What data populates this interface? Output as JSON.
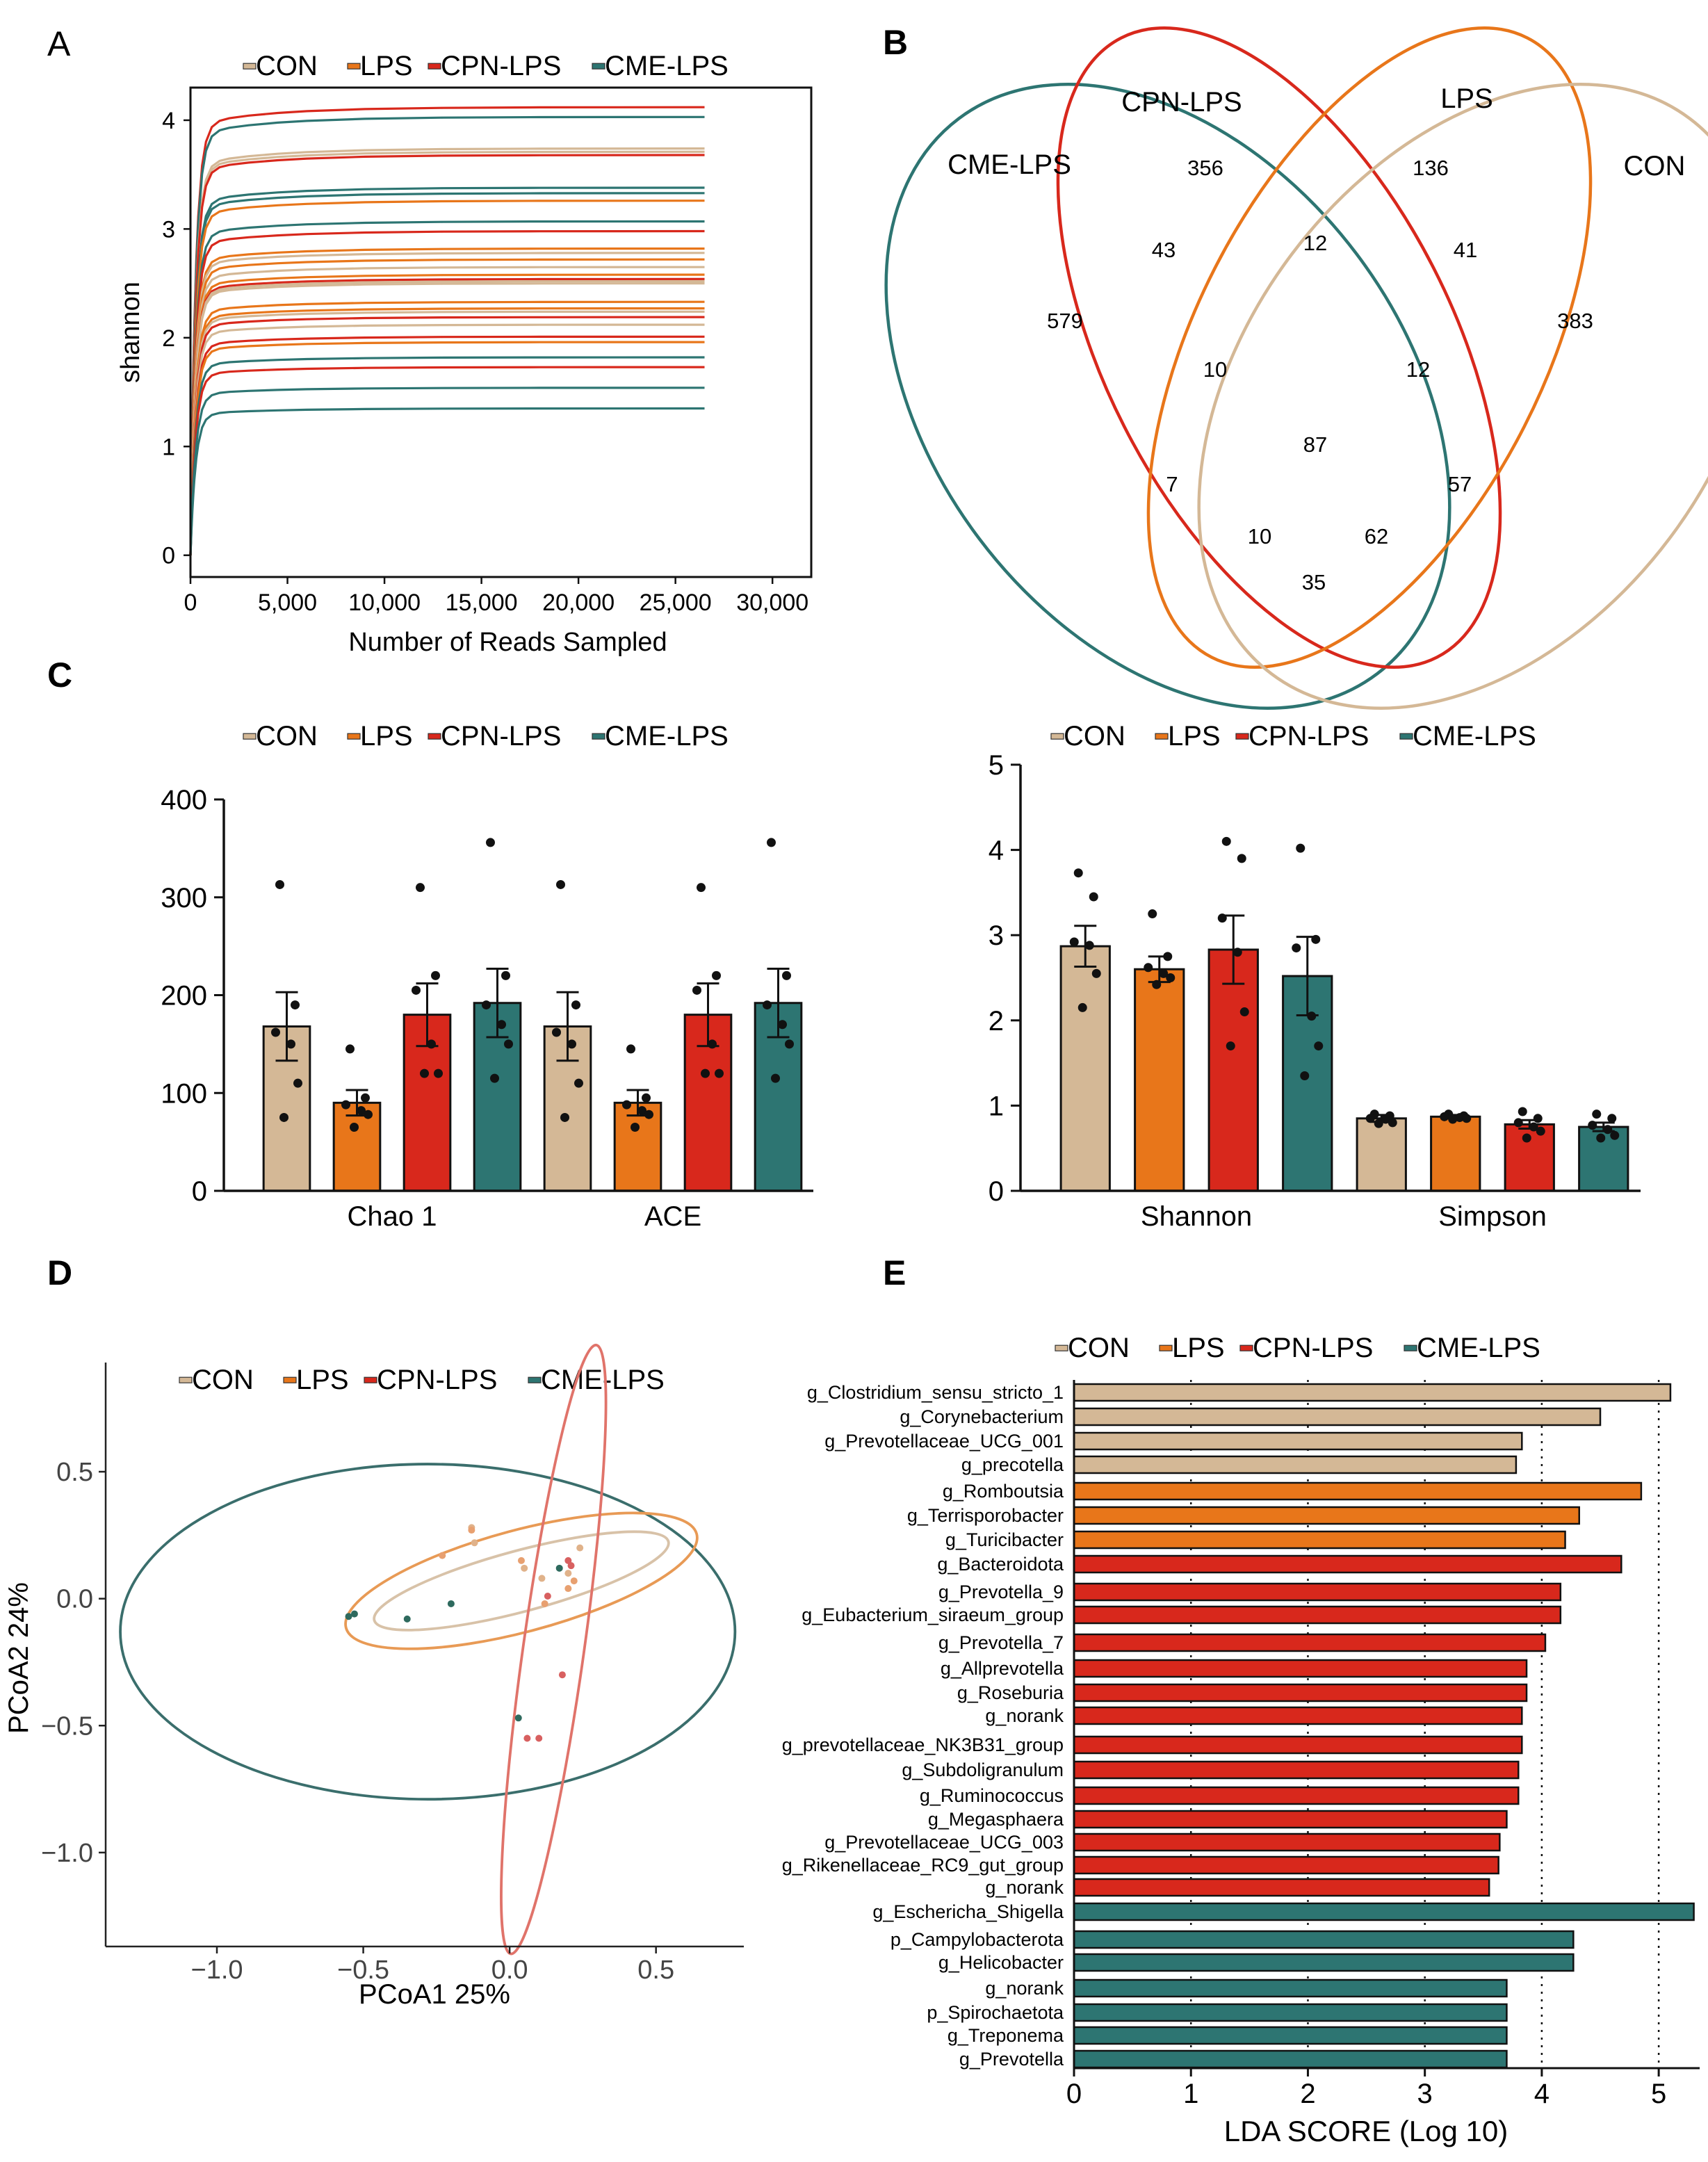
{
  "colors": {
    "CON": "#d4b896",
    "LPS": "#e8761a",
    "CPN-LPS": "#d8281c",
    "CME-LPS": "#2d7572",
    "ellipse_CON": "#d8c2a8",
    "ellipse_LPS": "#e89a55",
    "ellipse_CPN": "#e0736a",
    "ellipse_CME": "#3a6e6c"
  },
  "panels": {
    "A": "A",
    "B": "B",
    "C": "C",
    "D": "D",
    "E": "E"
  },
  "legend": [
    "CON",
    "LPS",
    "CPN-LPS",
    "CME-LPS"
  ],
  "panelA": {
    "chart_data": {
      "type": "line",
      "title": "",
      "xlabel": "Number of Reads Sampled",
      "ylabel": "shannon",
      "xlim": [
        0,
        32000
      ],
      "ylim": [
        -0.2,
        4.3
      ],
      "xticks": [
        0,
        5000,
        10000,
        15000,
        20000,
        25000,
        30000
      ],
      "xtick_labels": [
        "0",
        "5,000",
        "10,000",
        "15,000",
        "20,000",
        "25,000",
        "30,000"
      ],
      "yticks": [
        0,
        1,
        2,
        3,
        4
      ],
      "ytick_labels": [
        "0",
        "1",
        "2",
        "3",
        "4"
      ],
      "x_max_sampled": 26500,
      "series": [
        {
          "name": "CPN-LPS",
          "plateau": 4.12
        },
        {
          "name": "CME-LPS",
          "plateau": 4.03
        },
        {
          "name": "CON",
          "plateau": 3.74
        },
        {
          "name": "CON",
          "plateau": 3.71
        },
        {
          "name": "CPN-LPS",
          "plateau": 3.68
        },
        {
          "name": "CME-LPS",
          "plateau": 3.38
        },
        {
          "name": "CME-LPS",
          "plateau": 3.33
        },
        {
          "name": "LPS",
          "plateau": 3.26
        },
        {
          "name": "CME-LPS",
          "plateau": 3.07
        },
        {
          "name": "CPN-LPS",
          "plateau": 2.98
        },
        {
          "name": "LPS",
          "plateau": 2.82
        },
        {
          "name": "CON",
          "plateau": 2.78
        },
        {
          "name": "LPS",
          "plateau": 2.72
        },
        {
          "name": "CON",
          "plateau": 2.65
        },
        {
          "name": "LPS",
          "plateau": 2.58
        },
        {
          "name": "CPN-LPS",
          "plateau": 2.54
        },
        {
          "name": "CON",
          "plateau": 2.52
        },
        {
          "name": "CON",
          "plateau": 2.5
        },
        {
          "name": "LPS",
          "plateau": 2.33
        },
        {
          "name": "LPS",
          "plateau": 2.27
        },
        {
          "name": "CON",
          "plateau": 2.24
        },
        {
          "name": "CPN-LPS",
          "plateau": 2.19
        },
        {
          "name": "CON",
          "plateau": 2.12
        },
        {
          "name": "CPN-LPS",
          "plateau": 2.01
        },
        {
          "name": "LPS",
          "plateau": 1.96
        },
        {
          "name": "CME-LPS",
          "plateau": 1.82
        },
        {
          "name": "CPN-LPS",
          "plateau": 1.73
        },
        {
          "name": "CME-LPS",
          "plateau": 1.54
        },
        {
          "name": "CME-LPS",
          "plateau": 1.35
        }
      ]
    }
  },
  "panelB": {
    "chart_data": {
      "type": "venn",
      "sets": [
        "CME-LPS",
        "CPN-LPS",
        "LPS",
        "CON"
      ],
      "regions": [
        {
          "sets": [
            "CPN-LPS"
          ],
          "value": "356"
        },
        {
          "sets": [
            "LPS"
          ],
          "value": "136"
        },
        {
          "sets": [
            "CME-LPS",
            "CPN-LPS"
          ],
          "value": "43"
        },
        {
          "sets": [
            "CPN-LPS",
            "LPS"
          ],
          "value": "12"
        },
        {
          "sets": [
            "LPS",
            "CON"
          ],
          "value": "41"
        },
        {
          "sets": [
            "CME-LPS"
          ],
          "value": "579"
        },
        {
          "sets": [
            "CON"
          ],
          "value": "383"
        },
        {
          "sets": [
            "CME-LPS",
            "CPN-LPS",
            "LPS"
          ],
          "value": "10"
        },
        {
          "sets": [
            "CPN-LPS",
            "LPS",
            "CON"
          ],
          "value": "12"
        },
        {
          "sets": [
            "CME-LPS",
            "CPN-LPS",
            "LPS",
            "CON"
          ],
          "value": "87"
        },
        {
          "sets": [
            "CME-LPS",
            "LPS"
          ],
          "value": "7"
        },
        {
          "sets": [
            "CPN-LPS",
            "CON"
          ],
          "value": "57"
        },
        {
          "sets": [
            "CME-LPS",
            "LPS",
            "CON"
          ],
          "value": "10"
        },
        {
          "sets": [
            "CME-LPS",
            "CPN-LPS",
            "CON"
          ],
          "value": "62"
        },
        {
          "sets": [
            "CME-LPS",
            "CON"
          ],
          "value": "35"
        }
      ]
    }
  },
  "panelC1": {
    "chart_data": {
      "type": "bar",
      "categories": [
        "Chao 1",
        "ACE"
      ],
      "ylim": [
        0,
        400
      ],
      "yticks": [
        "0",
        "100",
        "200",
        "300",
        "400"
      ],
      "series": [
        {
          "name": "CON",
          "values": [
            168,
            168
          ],
          "se": [
            35,
            35
          ],
          "points": [
            [
              313,
              190,
              162,
              150,
              110,
              75
            ],
            [
              313,
              190,
              162,
              150,
              110,
              75
            ]
          ]
        },
        {
          "name": "LPS",
          "values": [
            90,
            90
          ],
          "se": [
            13,
            13
          ],
          "points": [
            [
              145,
              95,
              88,
              82,
              78,
              65
            ],
            [
              145,
              95,
              88,
              82,
              78,
              65
            ]
          ]
        },
        {
          "name": "CPN-LPS",
          "values": [
            180,
            180
          ],
          "se": [
            32,
            32
          ],
          "points": [
            [
              310,
              220,
              205,
              150,
              120,
              120
            ],
            [
              310,
              220,
              205,
              150,
              120,
              120
            ]
          ]
        },
        {
          "name": "CME-LPS",
          "values": [
            192,
            192
          ],
          "se": [
            35,
            35
          ],
          "points": [
            [
              356,
              220,
              190,
              170,
              150,
              115
            ],
            [
              356,
              220,
              190,
              170,
              150,
              115
            ]
          ]
        }
      ]
    }
  },
  "panelC2": {
    "chart_data": {
      "type": "bar",
      "categories": [
        "Shannon",
        "Simpson"
      ],
      "ylim": [
        0,
        5
      ],
      "yticks": [
        "0",
        "1",
        "2",
        "3",
        "4",
        "5"
      ],
      "series": [
        {
          "name": "CON",
          "values": [
            2.87,
            0.85
          ],
          "se": [
            0.24,
            0.04
          ],
          "points": [
            [
              3.73,
              3.45,
              2.92,
              2.88,
              2.55,
              2.15
            ],
            [
              0.9,
              0.88,
              0.85,
              0.84,
              0.8,
              0.79
            ]
          ]
        },
        {
          "name": "LPS",
          "values": [
            2.6,
            0.87
          ],
          "se": [
            0.15,
            0.02
          ],
          "points": [
            [
              3.25,
              2.75,
              2.62,
              2.55,
              2.5,
              2.42
            ],
            [
              0.9,
              0.88,
              0.87,
              0.86,
              0.85,
              0.84
            ]
          ]
        },
        {
          "name": "CPN-LPS",
          "values": [
            2.83,
            0.78
          ],
          "se": [
            0.4,
            0.05
          ],
          "points": [
            [
              4.1,
              3.9,
              3.2,
              2.8,
              2.1,
              1.7
            ],
            [
              0.93,
              0.85,
              0.8,
              0.75,
              0.7,
              0.62
            ]
          ]
        },
        {
          "name": "CME-LPS",
          "values": [
            2.52,
            0.75
          ],
          "se": [
            0.46,
            0.05
          ],
          "points": [
            [
              4.02,
              2.95,
              2.85,
              2.05,
              1.7,
              1.35
            ],
            [
              0.9,
              0.85,
              0.77,
              0.72,
              0.65,
              0.62
            ]
          ]
        }
      ]
    }
  },
  "panelD": {
    "chart_data": {
      "type": "scatter",
      "xlabel": "PCoA1 25%",
      "ylabel": "PCoA2 24%",
      "xlim": [
        -1.38,
        0.8
      ],
      "ylim": [
        -1.37,
        0.93
      ],
      "xticks": [
        "−1.0",
        "−0.5",
        "0.0",
        "0.5"
      ],
      "yticks": [
        "0.5",
        "0.0",
        "−0.5",
        "−1.0"
      ],
      "points": [
        {
          "g": "CON",
          "x": -0.13,
          "y": 0.28
        },
        {
          "g": "CON",
          "x": -0.12,
          "y": 0.22
        },
        {
          "g": "CON",
          "x": 0.05,
          "y": 0.12
        },
        {
          "g": "CON",
          "x": 0.11,
          "y": 0.08
        },
        {
          "g": "CON",
          "x": 0.2,
          "y": 0.1
        },
        {
          "g": "CON",
          "x": 0.24,
          "y": 0.2
        },
        {
          "g": "LPS",
          "x": -0.13,
          "y": 0.27
        },
        {
          "g": "LPS",
          "x": -0.23,
          "y": 0.17
        },
        {
          "g": "LPS",
          "x": 0.04,
          "y": 0.15
        },
        {
          "g": "LPS",
          "x": 0.12,
          "y": -0.02
        },
        {
          "g": "LPS",
          "x": 0.2,
          "y": 0.04
        },
        {
          "g": "LPS",
          "x": 0.22,
          "y": 0.07
        },
        {
          "g": "CPN-LPS",
          "x": 0.2,
          "y": 0.15
        },
        {
          "g": "CPN-LPS",
          "x": 0.21,
          "y": 0.13
        },
        {
          "g": "CPN-LPS",
          "x": 0.13,
          "y": 0.01
        },
        {
          "g": "CPN-LPS",
          "x": 0.06,
          "y": -0.55
        },
        {
          "g": "CPN-LPS",
          "x": 0.1,
          "y": -0.55
        },
        {
          "g": "CPN-LPS",
          "x": 0.18,
          "y": -0.3
        },
        {
          "g": "CME-LPS",
          "x": -0.55,
          "y": -0.07
        },
        {
          "g": "CME-LPS",
          "x": -0.53,
          "y": -0.06
        },
        {
          "g": "CME-LPS",
          "x": -0.35,
          "y": -0.08
        },
        {
          "g": "CME-LPS",
          "x": -0.2,
          "y": -0.02
        },
        {
          "g": "CME-LPS",
          "x": 0.17,
          "y": 0.12
        },
        {
          "g": "CME-LPS",
          "x": 0.03,
          "y": -0.47
        }
      ],
      "ellipses": [
        {
          "g": "CME-LPS",
          "cx": -0.28,
          "cy": -0.13,
          "rx": 1.05,
          "ry": 0.66,
          "angle": 0
        },
        {
          "g": "LPS",
          "cx": 0.04,
          "cy": 0.07,
          "rx": 0.62,
          "ry": 0.2,
          "angle": -15
        },
        {
          "g": "CON",
          "cx": 0.04,
          "cy": 0.07,
          "rx": 0.52,
          "ry": 0.12,
          "angle": -15
        },
        {
          "g": "CPN-LPS",
          "cx": 0.15,
          "cy": -0.2,
          "rx": 1.05,
          "ry": 0.12,
          "angle": -82
        }
      ]
    }
  },
  "panelE": {
    "chart_data": {
      "type": "bar",
      "orientation": "horizontal",
      "xlabel": "LDA SCORE (Log 10)",
      "xlim": [
        0,
        5.35
      ],
      "xticks": [
        "0",
        "1",
        "2",
        "3",
        "4",
        "5"
      ],
      "bars": [
        {
          "label": "g_Clostridium_sensu_stricto_1",
          "value": 5.1,
          "g": "CON"
        },
        {
          "label": "g_Corynebacterium",
          "value": 4.5,
          "g": "CON"
        },
        {
          "label": "g_Prevotellaceae_UCG_001",
          "value": 3.83,
          "g": "CON"
        },
        {
          "label": "g_precotella",
          "value": 3.78,
          "g": "CON"
        },
        {
          "label": "g_Romboutsia",
          "value": 4.85,
          "g": "LPS"
        },
        {
          "label": "g_Terrisporobacter",
          "value": 4.32,
          "g": "LPS"
        },
        {
          "label": "g_Turicibacter",
          "value": 4.2,
          "g": "LPS"
        },
        {
          "label": "g_Bacteroidota",
          "value": 4.68,
          "g": "CPN-LPS"
        },
        {
          "label": "g_Prevotella_9",
          "value": 4.16,
          "g": "CPN-LPS"
        },
        {
          "label": "g_Eubacterium_siraeum_group",
          "value": 4.16,
          "g": "CPN-LPS"
        },
        {
          "label": "g_Prevotella_7",
          "value": 4.03,
          "g": "CPN-LPS"
        },
        {
          "label": "g_Allprevotella",
          "value": 3.87,
          "g": "CPN-LPS"
        },
        {
          "label": "g_Roseburia",
          "value": 3.87,
          "g": "CPN-LPS"
        },
        {
          "label": "g_norank",
          "value": 3.83,
          "g": "CPN-LPS"
        },
        {
          "label": "g_prevotellaceae_NK3B31_group",
          "value": 3.83,
          "g": "CPN-LPS"
        },
        {
          "label": "g_Subdoligranulum",
          "value": 3.8,
          "g": "CPN-LPS"
        },
        {
          "label": "g_Ruminococcus",
          "value": 3.8,
          "g": "CPN-LPS"
        },
        {
          "label": "g_Megasphaera",
          "value": 3.7,
          "g": "CPN-LPS"
        },
        {
          "label": "g_Prevotellaceae_UCG_003",
          "value": 3.64,
          "g": "CPN-LPS"
        },
        {
          "label": "g_Rikenellaceae_RC9_gut_group",
          "value": 3.63,
          "g": "CPN-LPS"
        },
        {
          "label": "g_norank",
          "value": 3.55,
          "g": "CPN-LPS"
        },
        {
          "label": "g_Eschericha_Shigella",
          "value": 5.3,
          "g": "CME-LPS"
        },
        {
          "label": "p_Campylobacterota",
          "value": 4.27,
          "g": "CME-LPS"
        },
        {
          "label": "g_Helicobacter",
          "value": 4.27,
          "g": "CME-LPS"
        },
        {
          "label": "g_norank",
          "value": 3.7,
          "g": "CME-LPS"
        },
        {
          "label": "p_Spirochaetota",
          "value": 3.7,
          "g": "CME-LPS"
        },
        {
          "label": "g_Treponema",
          "value": 3.7,
          "g": "CME-LPS"
        },
        {
          "label": "g_Prevotella",
          "value": 3.7,
          "g": "CME-LPS"
        }
      ]
    }
  }
}
